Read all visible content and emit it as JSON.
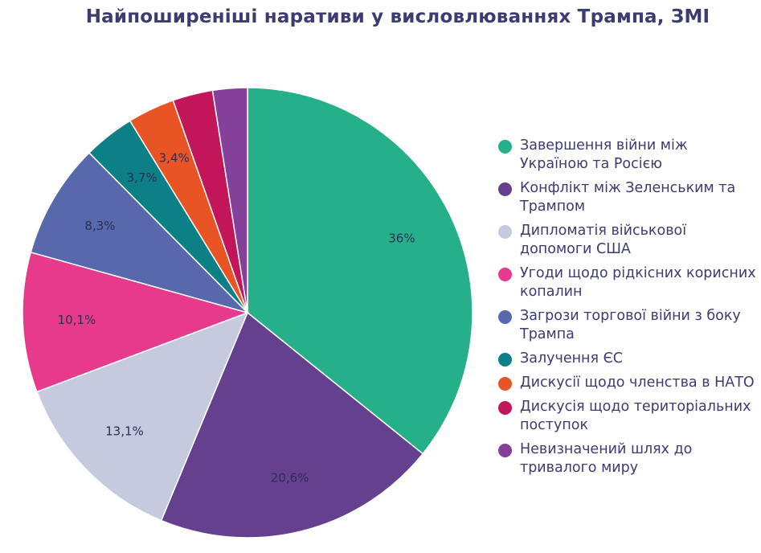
{
  "chart_data": {
    "type": "pie",
    "title": "Найпоширеніші наративи у висловлюваннях Трампа, ЗМІ",
    "slices": [
      {
        "label": "Завершення війни між Україною та Росією",
        "value": 36,
        "display": "36%",
        "color": "#26b08a"
      },
      {
        "label": "Конфлікт між Зеленським та Трампом",
        "value": 20.6,
        "display": "20,6%",
        "color": "#65408f"
      },
      {
        "label": "Дипломатія військової допомоги США",
        "value": 13.1,
        "display": "13,1%",
        "color": "#c6cadf"
      },
      {
        "label": "Угоди щодо рідкісних корисних копалин",
        "value": 10.1,
        "display": "10,1%",
        "color": "#e73a8d"
      },
      {
        "label": "Загрози торгової війни з боку Трампа",
        "value": 8.3,
        "display": "8,3%",
        "color": "#5868ad"
      },
      {
        "label": "Залучення ЄС",
        "value": 3.7,
        "display": "3,7%",
        "color": "#0d8087"
      },
      {
        "label": "Дискусії щодо членства в НАТО",
        "value": 3.4,
        "display": "3,4%",
        "color": "#e85424"
      },
      {
        "label": "Дискусія щодо територіальних поступок",
        "value": 2.9,
        "display": "",
        "color": "#c2155a"
      },
      {
        "label": "Невизначений шлях до тривалого миру",
        "value": 2.5,
        "display": "",
        "color": "#85409a"
      }
    ],
    "legend_position": "right"
  }
}
